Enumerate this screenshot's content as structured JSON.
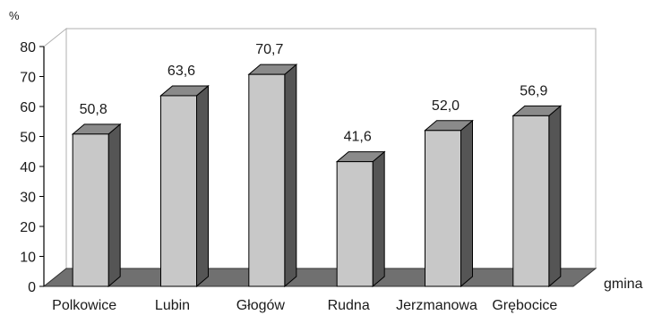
{
  "chart_data": {
    "type": "bar",
    "title": "",
    "ylabel": "%",
    "xlabel": "gmina",
    "categories": [
      "Polkowice",
      "Lubin",
      "Głogów",
      "Rudna",
      "Jerzmanowa",
      "Grębocice"
    ],
    "values": [
      50.8,
      63.6,
      70.7,
      41.6,
      52.0,
      56.9
    ],
    "value_labels": [
      "50,8",
      "63,6",
      "70,7",
      "41,6",
      "52,0",
      "56,9"
    ],
    "yticks": [
      "0",
      "10",
      "20",
      "30",
      "40",
      "50",
      "60",
      "70",
      "80"
    ],
    "ylim": [
      0,
      80
    ],
    "grid": false,
    "legend": "none",
    "style": "3d",
    "colors": {
      "bar_front": "#c8c8c8",
      "bar_side": "#555555",
      "bar_top": "#8a8a8a",
      "floor": "#707070",
      "stroke": "#000000",
      "frame": "#b0b0b0"
    }
  }
}
